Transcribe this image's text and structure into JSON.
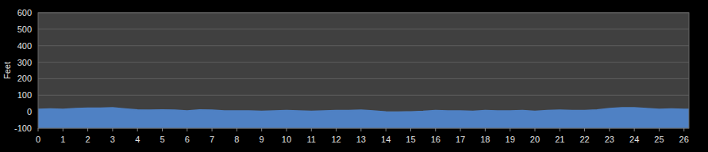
{
  "chart_data": {
    "type": "area",
    "y_label": "Feet",
    "x": [
      0,
      0.5,
      1,
      1.5,
      2,
      2.5,
      3,
      3.5,
      4,
      4.5,
      5,
      5.5,
      6,
      6.5,
      7,
      7.5,
      8,
      8.5,
      9,
      9.5,
      10,
      10.5,
      11,
      11.5,
      12,
      12.5,
      13,
      13.5,
      14,
      14.5,
      15,
      15.5,
      16,
      16.5,
      17,
      17.5,
      18,
      18.5,
      19,
      19.5,
      20,
      20.5,
      21,
      21.5,
      22,
      22.5,
      23,
      23.5,
      24,
      24.5,
      25,
      25.5,
      26,
      26.2
    ],
    "values": [
      15,
      18,
      15,
      20,
      22,
      22,
      25,
      18,
      12,
      10,
      12,
      10,
      5,
      12,
      10,
      5,
      5,
      5,
      3,
      5,
      8,
      5,
      3,
      5,
      8,
      8,
      10,
      5,
      0,
      -2,
      0,
      3,
      8,
      5,
      5,
      3,
      8,
      5,
      5,
      8,
      3,
      8,
      10,
      8,
      8,
      12,
      20,
      25,
      25,
      20,
      15,
      18,
      15,
      15
    ],
    "color": "#4f81c4",
    "xlim": [
      0,
      26.2
    ],
    "xticks": [
      0,
      1,
      2,
      3,
      4,
      5,
      6,
      7,
      8,
      9,
      10,
      11,
      12,
      13,
      14,
      15,
      16,
      17,
      18,
      19,
      20,
      21,
      22,
      23,
      24,
      25,
      26
    ],
    "ylim": [
      -100,
      600
    ],
    "yticks": [
      -100,
      0,
      100,
      200,
      300,
      400,
      500,
      600
    ],
    "grid": true
  }
}
